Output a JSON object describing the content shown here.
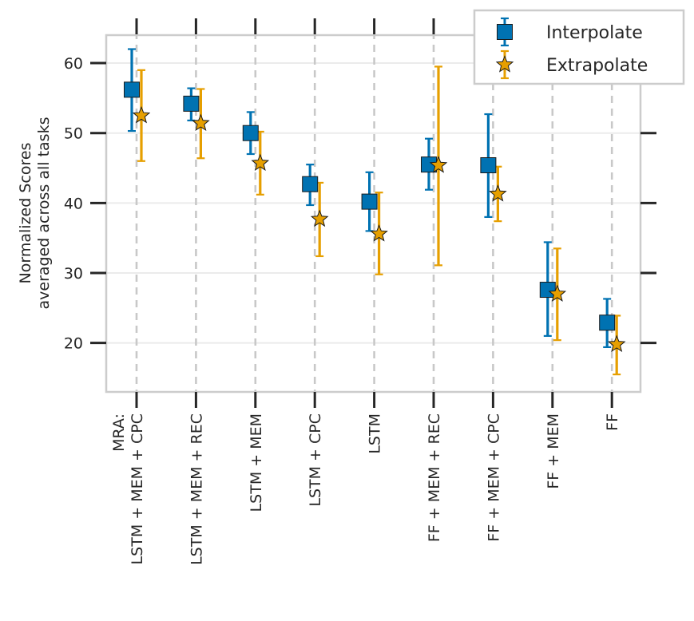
{
  "chart_data": {
    "type": "scatter",
    "ylabel": "Normalized Scores\naveraged across all tasks",
    "ylim": [
      13,
      64
    ],
    "yticks": [
      20,
      30,
      40,
      50,
      60
    ],
    "grid": "horizontal lines at y ticks, vertical dashed lines at categories",
    "legend_position": "top-right",
    "categories": [
      "MRA:\nLSTM + MEM + CPC",
      "LSTM + MEM + REC",
      "LSTM + MEM",
      "LSTM + CPC",
      "LSTM",
      "FF + MEM + REC",
      "FF + MEM + CPC",
      "FF + MEM",
      "FF"
    ],
    "series": [
      {
        "name": "Interpolate",
        "marker": "square",
        "color": "#0072b2",
        "values": [
          56.2,
          54.2,
          50.0,
          42.7,
          40.2,
          45.5,
          45.4,
          27.6,
          22.9
        ],
        "lower": [
          50.3,
          51.8,
          47.0,
          39.7,
          36.0,
          41.9,
          38.0,
          21.0,
          19.4
        ],
        "upper": [
          62.0,
          56.4,
          53.0,
          45.5,
          44.4,
          49.2,
          52.7,
          34.4,
          26.3
        ]
      },
      {
        "name": "Extrapolate",
        "marker": "star",
        "color": "#e69f00",
        "values": [
          52.5,
          51.4,
          45.7,
          37.7,
          35.6,
          45.4,
          41.3,
          27.0,
          19.8
        ],
        "lower": [
          46.0,
          46.4,
          41.2,
          32.4,
          29.8,
          31.1,
          37.4,
          20.4,
          15.5
        ],
        "upper": [
          59.0,
          56.3,
          50.2,
          42.9,
          41.5,
          59.5,
          45.2,
          33.5,
          23.9
        ]
      }
    ]
  }
}
